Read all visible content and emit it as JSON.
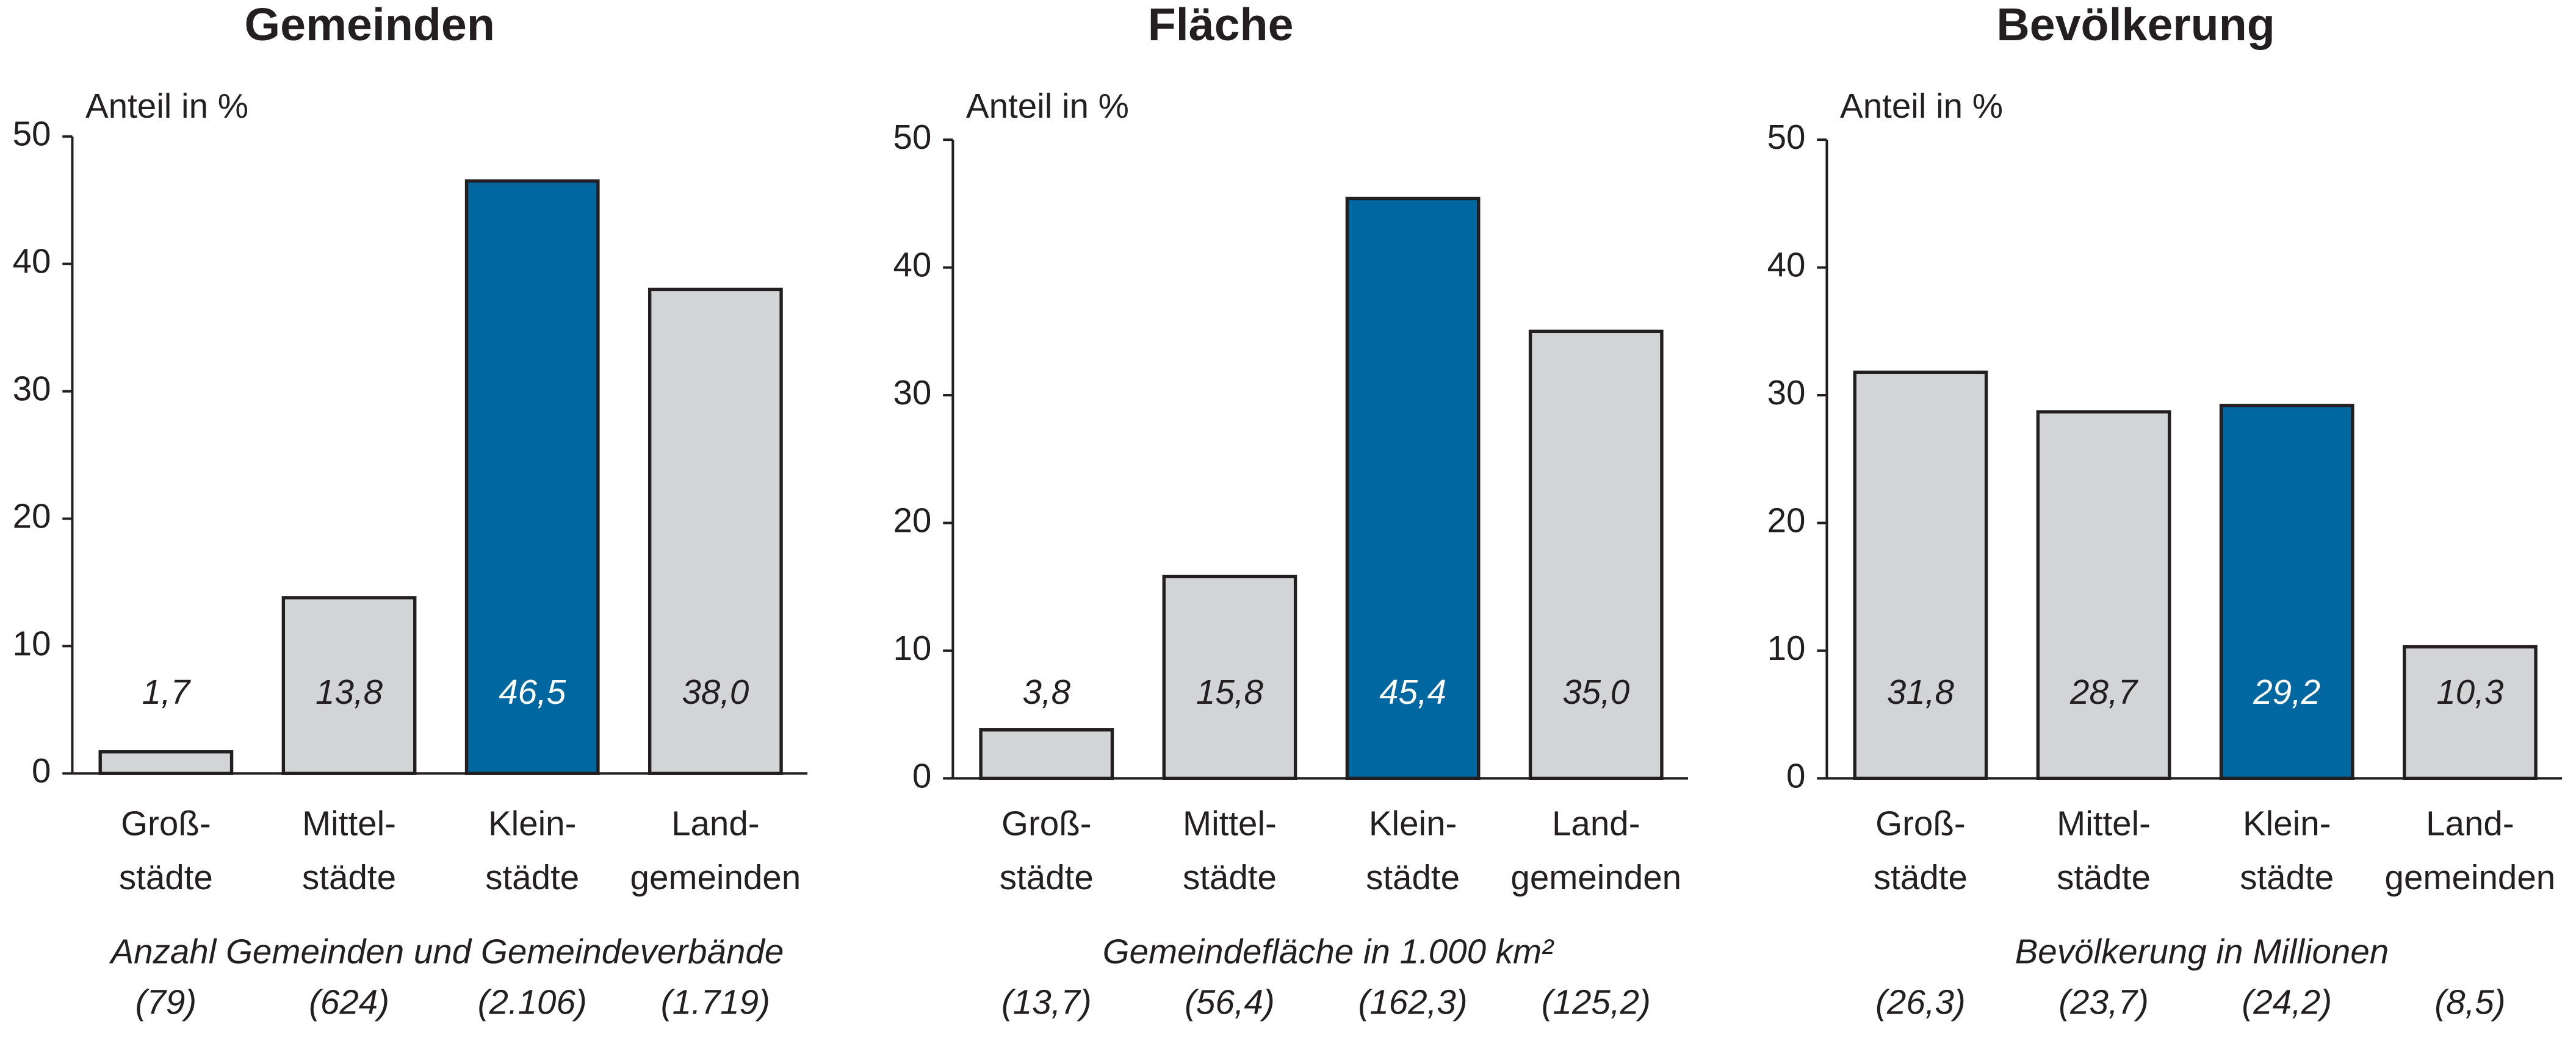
{
  "chart_data": [
    {
      "type": "bar",
      "title": "Gemeinden",
      "ylabel": "Anteil in %",
      "categories": [
        [
          "Groß-",
          "städte"
        ],
        [
          "Mittel-",
          "städte"
        ],
        [
          "Klein-",
          "städte"
        ],
        [
          "Land-",
          "gemeinden"
        ]
      ],
      "values": [
        1.7,
        13.8,
        46.5,
        38.0
      ],
      "value_labels": [
        "1,7",
        "13,8",
        "46,5",
        "38,0"
      ],
      "colors": [
        "#d3d4d6",
        "#d3d4d6",
        "#0067a1",
        "#d3d4d6"
      ],
      "label_colors": [
        "#231f20",
        "#231f20",
        "#ffffff",
        "#231f20"
      ],
      "ylim": [
        0,
        50
      ],
      "yticks": [
        0,
        10,
        20,
        30,
        40,
        50
      ],
      "note": "Anzahl Gemeinden und Gemeindeverbände",
      "absolute_labels": [
        "(79)",
        "(624)",
        "(2.106)",
        "(1.719)"
      ]
    },
    {
      "type": "bar",
      "title": "Fläche",
      "ylabel": "Anteil in %",
      "categories": [
        [
          "Groß-",
          "städte"
        ],
        [
          "Mittel-",
          "städte"
        ],
        [
          "Klein-",
          "städte"
        ],
        [
          "Land-",
          "gemeinden"
        ]
      ],
      "values": [
        3.8,
        15.8,
        45.4,
        35.0
      ],
      "value_labels": [
        "3,8",
        "15,8",
        "45,4",
        "35,0"
      ],
      "colors": [
        "#d3d4d6",
        "#d3d4d6",
        "#0067a1",
        "#d3d4d6"
      ],
      "label_colors": [
        "#231f20",
        "#231f20",
        "#ffffff",
        "#231f20"
      ],
      "ylim": [
        0,
        50
      ],
      "yticks": [
        0,
        10,
        20,
        30,
        40,
        50
      ],
      "note": "Gemeindefläche in 1.000 km²",
      "absolute_labels": [
        "(13,7)",
        "(56,4)",
        "(162,3)",
        "(125,2)"
      ]
    },
    {
      "type": "bar",
      "title": "Bevölkerung",
      "ylabel": "Anteil in %",
      "categories": [
        [
          "Groß-",
          "städte"
        ],
        [
          "Mittel-",
          "städte"
        ],
        [
          "Klein-",
          "städte"
        ],
        [
          "Land-",
          "gemeinden"
        ]
      ],
      "values": [
        31.8,
        28.7,
        29.2,
        10.3
      ],
      "value_labels": [
        "31,8",
        "28,7",
        "29,2",
        "10,3"
      ],
      "colors": [
        "#d3d4d6",
        "#d3d4d6",
        "#0067a1",
        "#d3d4d6"
      ],
      "label_colors": [
        "#231f20",
        "#231f20",
        "#ffffff",
        "#231f20"
      ],
      "ylim": [
        0,
        50
      ],
      "yticks": [
        0,
        10,
        20,
        30,
        40,
        50
      ],
      "note": "Bevölkerung in Millionen",
      "absolute_labels": [
        "(26,3)",
        "(23,7)",
        "(24,2)",
        "(8,5)"
      ]
    }
  ]
}
